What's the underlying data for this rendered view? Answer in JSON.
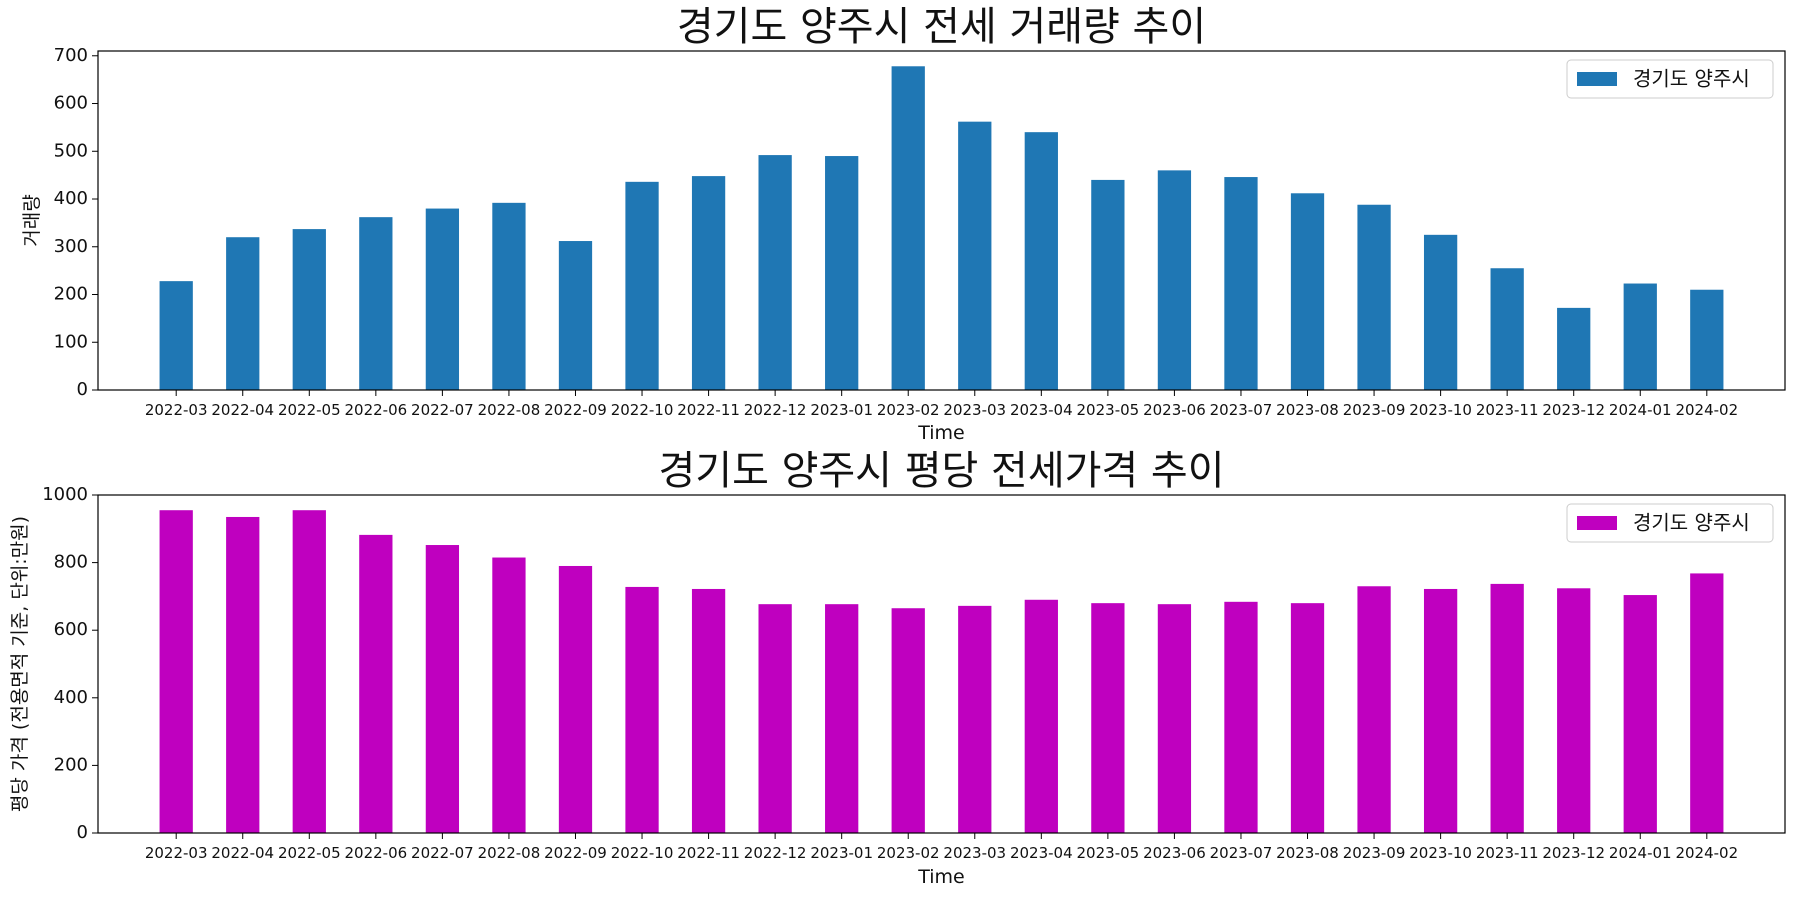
{
  "chart_data": [
    {
      "type": "bar",
      "title": "경기도 양주시 전세 거래량 추이",
      "xlabel": "Time",
      "ylabel": "거래량",
      "ylim": [
        0,
        710
      ],
      "yticks": [
        0,
        100,
        200,
        300,
        400,
        500,
        600,
        700
      ],
      "legend_position": "top-right",
      "color": "#1f77b4",
      "categories": [
        "2022-03",
        "2022-04",
        "2022-05",
        "2022-06",
        "2022-07",
        "2022-08",
        "2022-09",
        "2022-10",
        "2022-11",
        "2022-12",
        "2023-01",
        "2023-02",
        "2023-03",
        "2023-04",
        "2023-05",
        "2023-06",
        "2023-07",
        "2023-08",
        "2023-09",
        "2023-10",
        "2023-11",
        "2023-12",
        "2024-01",
        "2024-02"
      ],
      "series": [
        {
          "name": "경기도 양주시",
          "values": [
            228,
            320,
            337,
            362,
            380,
            392,
            312,
            436,
            448,
            492,
            490,
            678,
            562,
            540,
            440,
            460,
            446,
            412,
            388,
            325,
            255,
            172,
            223,
            210
          ]
        }
      ]
    },
    {
      "type": "bar",
      "title": "경기도 양주시 평당 전세가격 추이",
      "xlabel": "Time",
      "ylabel": "평당 가격 (전용면적 기준, 단위:만원)",
      "ylim": [
        0,
        1000
      ],
      "yticks": [
        0,
        200,
        400,
        600,
        800,
        1000
      ],
      "legend_position": "top-right",
      "color": "#bf00bf",
      "categories": [
        "2022-03",
        "2022-04",
        "2022-05",
        "2022-06",
        "2022-07",
        "2022-08",
        "2022-09",
        "2022-10",
        "2022-11",
        "2022-12",
        "2023-01",
        "2023-02",
        "2023-03",
        "2023-04",
        "2023-05",
        "2023-06",
        "2023-07",
        "2023-08",
        "2023-09",
        "2023-10",
        "2023-11",
        "2023-12",
        "2024-01",
        "2024-02"
      ],
      "series": [
        {
          "name": "경기도 양주시",
          "values": [
            955,
            935,
            955,
            882,
            852,
            815,
            790,
            728,
            722,
            677,
            677,
            665,
            672,
            690,
            680,
            677,
            684,
            680,
            730,
            722,
            737,
            724,
            704,
            768
          ]
        }
      ]
    }
  ]
}
